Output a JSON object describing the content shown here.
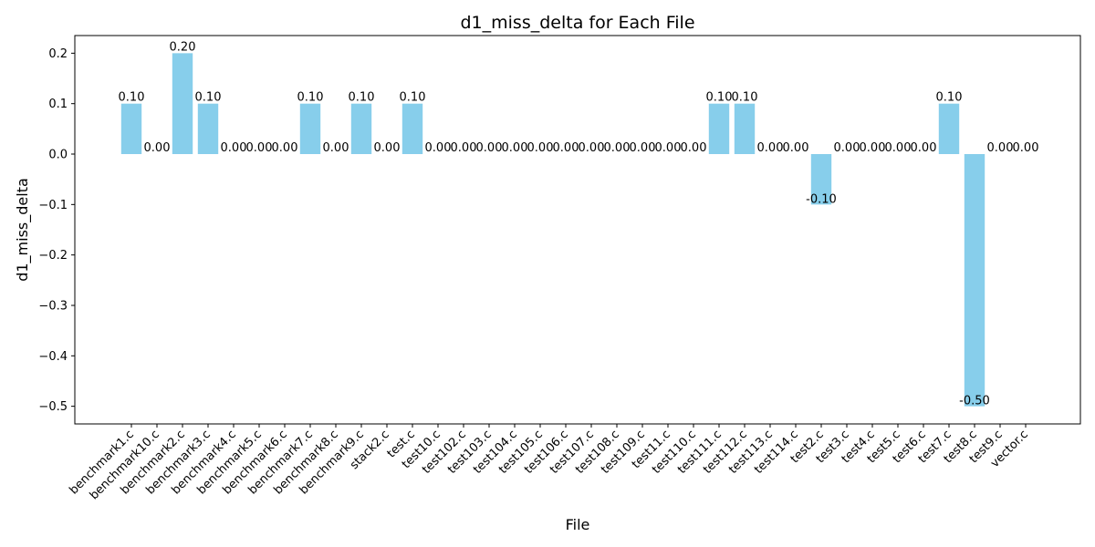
{
  "chart_data": {
    "type": "bar",
    "title": "d1_miss_delta for Each File",
    "xlabel": "File",
    "ylabel": "d1_miss_delta",
    "ylim": [
      -0.535,
      0.235
    ],
    "yticks": [
      0.2,
      0.1,
      0.0,
      -0.1,
      -0.2,
      -0.3,
      -0.4,
      -0.5
    ],
    "ytick_labels": [
      "0.2",
      "0.1",
      "0.0",
      "−0.1",
      "−0.2",
      "−0.3",
      "−0.4",
      "−0.5"
    ],
    "grid": false,
    "bar_color": "#87CEEB",
    "categories": [
      "benchmark1.c",
      "benchmark10.c",
      "benchmark2.c",
      "benchmark3.c",
      "benchmark4.c",
      "benchmark5.c",
      "benchmark6.c",
      "benchmark7.c",
      "benchmark8.c",
      "benchmark9.c",
      "stack2.c",
      "test.c",
      "test10.c",
      "test102.c",
      "test103.c",
      "test104.c",
      "test105.c",
      "test106.c",
      "test107.c",
      "test108.c",
      "test109.c",
      "test11.c",
      "test110.c",
      "test111.c",
      "test112.c",
      "test113.c",
      "test114.c",
      "test2.c",
      "test3.c",
      "test4.c",
      "test5.c",
      "test6.c",
      "test7.c",
      "test8.c",
      "test9.c",
      "vector.c"
    ],
    "values": [
      0.1,
      0.0,
      0.2,
      0.1,
      0.0,
      0.0,
      0.0,
      0.1,
      0.0,
      0.1,
      0.0,
      0.1,
      0.0,
      0.0,
      0.0,
      0.0,
      0.0,
      0.0,
      0.0,
      0.0,
      0.0,
      0.0,
      0.0,
      0.1,
      0.1,
      0.0,
      0.0,
      -0.1,
      0.0,
      0.0,
      0.0,
      0.0,
      0.1,
      -0.5,
      0.0,
      0.0
    ],
    "value_labels": [
      "0.10",
      "0.00",
      "0.20",
      "0.10",
      "0.00",
      "0.00",
      "0.00",
      "0.10",
      "0.00",
      "0.10",
      "0.00",
      "0.10",
      "0.00",
      "0.00",
      "0.00",
      "0.00",
      "0.00",
      "0.00",
      "0.00",
      "0.00",
      "0.00",
      "0.00",
      "0.00",
      "0.10",
      "0.10",
      "0.00",
      "0.00",
      "-0.10",
      "0.00",
      "0.00",
      "0.00",
      "0.00",
      "0.10",
      "-0.50",
      "0.00",
      "0.00"
    ]
  }
}
